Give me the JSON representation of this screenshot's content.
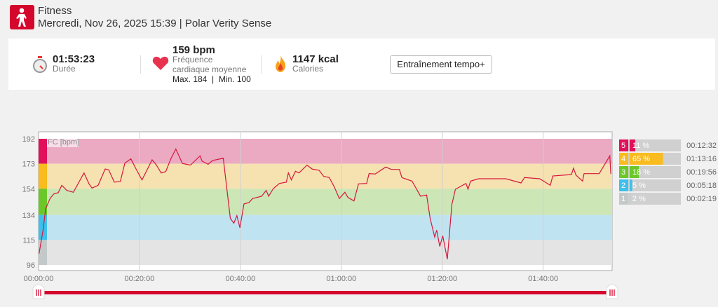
{
  "header": {
    "title": "Fitness",
    "subtitle": "Mercredi, Nov 26, 2025 15:39 | Polar Verity Sense",
    "sport_icon": "fitness-person-icon"
  },
  "summary": {
    "duration": {
      "value": "01:53:23",
      "label": "Durée",
      "icon": "stopwatch-icon"
    },
    "heart_rate": {
      "value": "159 bpm",
      "label1": "Fréquence",
      "label2": "cardiaque moyenne",
      "maxmin": "Max. 184  |  Min. 100",
      "icon": "heart-icon"
    },
    "calories": {
      "value": "1147 kcal",
      "label": "Calories",
      "icon": "flame-icon"
    },
    "training_button": "Entraînement tempo+"
  },
  "colors": {
    "accent": "#d4062b",
    "line": "#d6173c"
  },
  "chart_data": {
    "type": "line",
    "series_label": "FC [bpm]",
    "ylim": [
      96,
      192
    ],
    "yticks": [
      "192",
      "173",
      "154",
      "134",
      "115",
      "96"
    ],
    "ytick_values": [
      192,
      173,
      154,
      134,
      115,
      96
    ],
    "xlim_minutes": [
      0,
      113.38
    ],
    "xticks": [
      "00:00:00",
      "00:20:00",
      "00:40:00",
      "01:00:00",
      "01:20:00",
      "01:40:00"
    ],
    "xtick_minutes": [
      0,
      20,
      40,
      60,
      80,
      100
    ],
    "zones": [
      {
        "zone": "5",
        "from": 173,
        "to": 192,
        "percent": 11,
        "percent_label": "11 %",
        "time": "00:12:32",
        "color": "#e0105a",
        "band": "#ebaac2"
      },
      {
        "zone": "4",
        "from": 154,
        "to": 173,
        "percent": 65,
        "percent_label": "65 %",
        "time": "01:13:16",
        "color": "#f9bb1e",
        "band": "#f5e2b0"
      },
      {
        "zone": "3",
        "from": 134,
        "to": 154,
        "percent": 18,
        "percent_label": "18 %",
        "time": "00:19:56",
        "color": "#6cc72a",
        "band": "#cce6b6"
      },
      {
        "zone": "2",
        "from": 115,
        "to": 134,
        "percent": 5,
        "percent_label": "5 %",
        "time": "00:05:18",
        "color": "#3ec0ec",
        "band": "#c0e3f1"
      },
      {
        "zone": "1",
        "from": 96,
        "to": 115,
        "percent": 2,
        "percent_label": "2 %",
        "time": "00:02:19",
        "color": "#c3c9c9",
        "band": "#e3e4e3"
      }
    ],
    "hr": [
      [
        0.1,
        104.7
      ],
      [
        0.9,
        122.7
      ],
      [
        1.4,
        138.7
      ],
      [
        2.3,
        146.7
      ],
      [
        3,
        150
      ],
      [
        3.9,
        151
      ],
      [
        4.6,
        156.6
      ],
      [
        5.6,
        152.7
      ],
      [
        6.9,
        151.3
      ],
      [
        9,
        166
      ],
      [
        10,
        157.7
      ],
      [
        10.6,
        154.5
      ],
      [
        11.8,
        156.6
      ],
      [
        13.2,
        169
      ],
      [
        13.9,
        168.4
      ],
      [
        15,
        159
      ],
      [
        16.2,
        159.5
      ],
      [
        17.1,
        173.5
      ],
      [
        18.3,
        176.7
      ],
      [
        19.4,
        168.4
      ],
      [
        20.5,
        160.7
      ],
      [
        22.5,
        176
      ],
      [
        23.3,
        172.3
      ],
      [
        24.3,
        166
      ],
      [
        25.2,
        167
      ],
      [
        26.2,
        176.7
      ],
      [
        27.2,
        184.2
      ],
      [
        28.5,
        173.2
      ],
      [
        30.1,
        172
      ],
      [
        32,
        179
      ],
      [
        32.4,
        175
      ],
      [
        33.6,
        172.6
      ],
      [
        34.5,
        175.5
      ],
      [
        36.6,
        177.2
      ],
      [
        38,
        131.4
      ],
      [
        38.7,
        127.8
      ],
      [
        39.3,
        133.5
      ],
      [
        39.9,
        124.3
      ],
      [
        40.7,
        142.4
      ],
      [
        41.7,
        143.5
      ],
      [
        42.4,
        146.5
      ],
      [
        44.2,
        148.3
      ],
      [
        45.1,
        152.7
      ],
      [
        45.6,
        148.3
      ],
      [
        46.5,
        154
      ],
      [
        47.7,
        158
      ],
      [
        49.1,
        159
      ],
      [
        49.5,
        166
      ],
      [
        50.1,
        160.7
      ],
      [
        50.9,
        167.3
      ],
      [
        51.6,
        166
      ],
      [
        53.2,
        172
      ],
      [
        54.2,
        169
      ],
      [
        55.6,
        168
      ],
      [
        56.5,
        163.4
      ],
      [
        57.6,
        162.5
      ],
      [
        58.6,
        155.4
      ],
      [
        59.6,
        146.5
      ],
      [
        60.7,
        151.3
      ],
      [
        61.3,
        147.4
      ],
      [
        62.5,
        144.7
      ],
      [
        63.4,
        157.7
      ],
      [
        65,
        158
      ],
      [
        65.5,
        165.5
      ],
      [
        66.7,
        165.2
      ],
      [
        68.8,
        170.5
      ],
      [
        69.9,
        168.7
      ],
      [
        71.5,
        168.7
      ],
      [
        72,
        162.5
      ],
      [
        74,
        159.8
      ],
      [
        75.7,
        148.3
      ],
      [
        76.9,
        149.2
      ],
      [
        77.6,
        131.4
      ],
      [
        78.5,
        117.2
      ],
      [
        78.9,
        122.5
      ],
      [
        79.5,
        110.1
      ],
      [
        80.1,
        118.1
      ],
      [
        81,
        100.3
      ],
      [
        81.9,
        142
      ],
      [
        82.6,
        153.6
      ],
      [
        84.7,
        158
      ],
      [
        85.1,
        153.6
      ],
      [
        85.6,
        159.8
      ],
      [
        87.2,
        161.6
      ],
      [
        92.6,
        161.6
      ],
      [
        95.6,
        158.4
      ],
      [
        96.3,
        162.5
      ],
      [
        99.3,
        161.6
      ],
      [
        101.4,
        156.6
      ],
      [
        101.9,
        163.7
      ],
      [
        105.6,
        164.8
      ],
      [
        106,
        169.6
      ],
      [
        106.5,
        164.3
      ],
      [
        107.8,
        159.8
      ],
      [
        108.1,
        165.5
      ],
      [
        111.1,
        165.5
      ],
      [
        113.2,
        179
      ],
      [
        113.4,
        165.2
      ]
    ]
  }
}
